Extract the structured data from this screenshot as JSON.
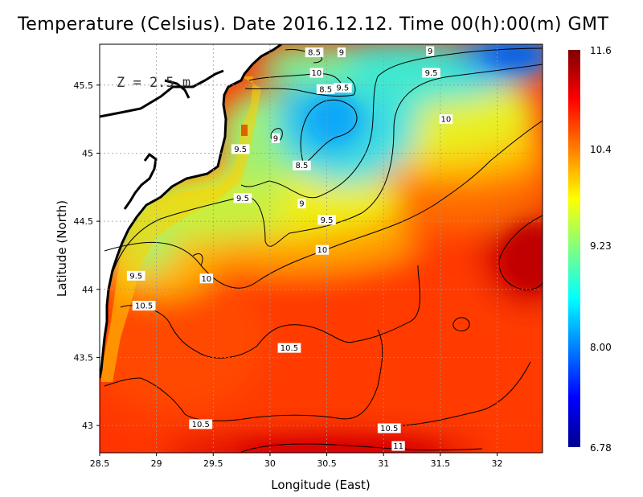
{
  "title": "Temperature (Celsius). Date 2016.12.12. Time 00(h):00(m) GMT",
  "depth_label": "Z = 2.5 m",
  "chart_data": {
    "type": "heatmap",
    "xlabel": "Longitude (East)",
    "ylabel": "Latitude (North)",
    "xlim": [
      28.5,
      32.4
    ],
    "ylim": [
      42.8,
      45.8
    ],
    "x_ticks": [
      "28.5",
      "29",
      "29.5",
      "30",
      "30.5",
      "31",
      "31.5",
      "32"
    ],
    "x_tick_values": [
      28.5,
      29,
      29.5,
      30,
      30.5,
      31,
      31.5,
      32
    ],
    "y_ticks": [
      "43",
      "43.5",
      "44",
      "44.5",
      "45",
      "45.5"
    ],
    "y_tick_values": [
      43,
      43.5,
      44,
      44.5,
      45,
      45.5
    ],
    "grid": true,
    "colorbar": {
      "min": 6.78,
      "max": 11.6,
      "labels": [
        "11.6",
        "10.4",
        "9.23",
        "8.00",
        "6.78"
      ],
      "label_values": [
        11.6,
        10.4,
        9.23,
        8.0,
        6.78
      ],
      "colors": [
        "#00008f",
        "#0000ff",
        "#0080ff",
        "#00ffff",
        "#80ff80",
        "#ffff00",
        "#ff8000",
        "#ff0000",
        "#800000"
      ]
    },
    "contour_labels": [
      {
        "text": "8.5",
        "lon": 30.39,
        "lat": 45.74
      },
      {
        "text": "9",
        "lon": 30.63,
        "lat": 45.74
      },
      {
        "text": "9",
        "lon": 31.41,
        "lat": 45.75
      },
      {
        "text": "10",
        "lon": 30.41,
        "lat": 45.59
      },
      {
        "text": "9.5",
        "lon": 31.42,
        "lat": 45.59
      },
      {
        "text": "8.5",
        "lon": 30.49,
        "lat": 45.47
      },
      {
        "text": "9.5",
        "lon": 30.64,
        "lat": 45.48
      },
      {
        "text": "10",
        "lon": 31.55,
        "lat": 45.25
      },
      {
        "text": "9",
        "lon": 30.05,
        "lat": 45.11
      },
      {
        "text": "9.5",
        "lon": 29.74,
        "lat": 45.03
      },
      {
        "text": "8.5",
        "lon": 30.28,
        "lat": 44.91
      },
      {
        "text": "9.5",
        "lon": 29.76,
        "lat": 44.67
      },
      {
        "text": "9",
        "lon": 30.28,
        "lat": 44.63
      },
      {
        "text": "9.5",
        "lon": 30.5,
        "lat": 44.51
      },
      {
        "text": "10",
        "lon": 30.46,
        "lat": 44.29
      },
      {
        "text": "9.5",
        "lon": 28.82,
        "lat": 44.1
      },
      {
        "text": "10",
        "lon": 29.44,
        "lat": 44.08
      },
      {
        "text": "10.5",
        "lon": 28.89,
        "lat": 43.88
      },
      {
        "text": "10.5",
        "lon": 30.17,
        "lat": 43.57
      },
      {
        "text": "10.5",
        "lon": 29.39,
        "lat": 43.01
      },
      {
        "text": "10.5",
        "lon": 31.05,
        "lat": 42.98
      },
      {
        "text": "11",
        "lon": 31.13,
        "lat": 42.85
      }
    ]
  }
}
